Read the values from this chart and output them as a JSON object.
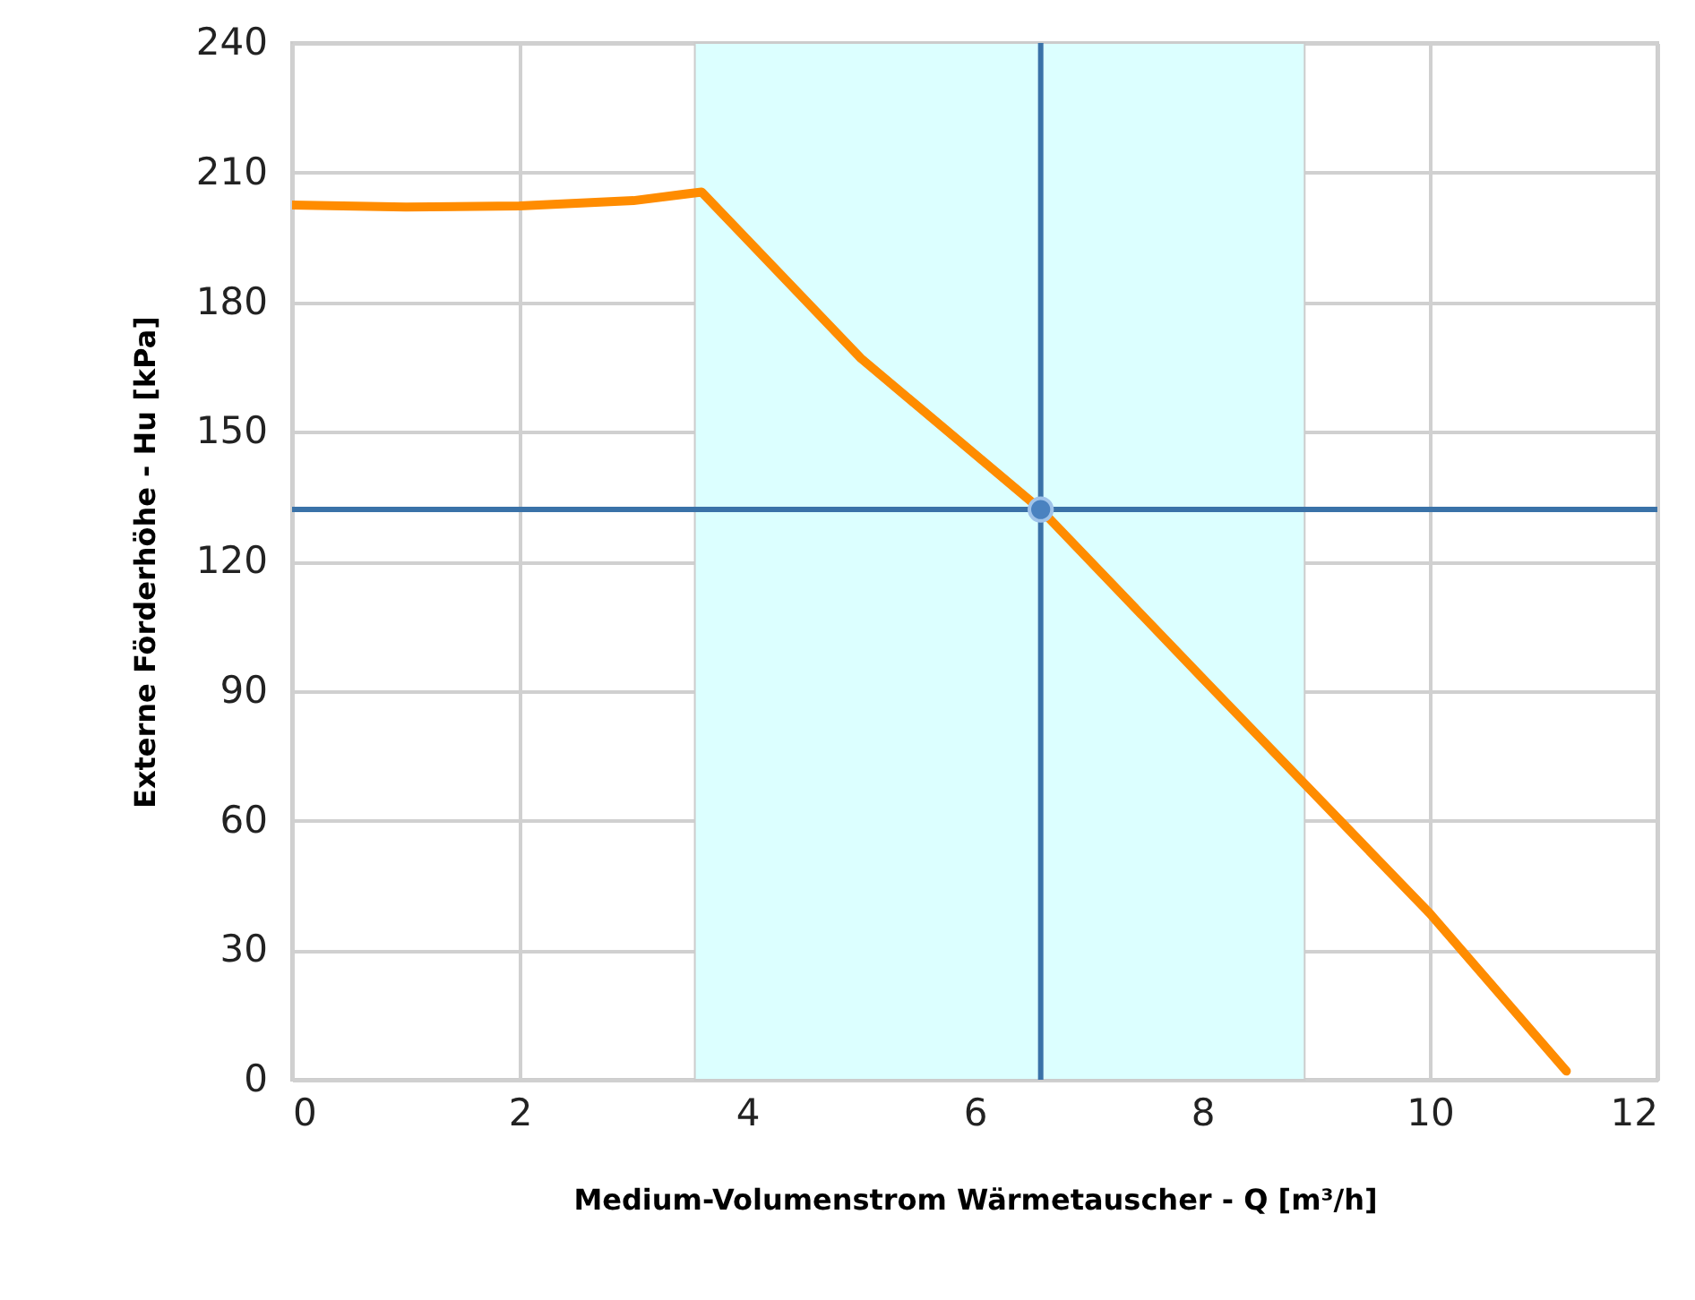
{
  "chart_data": {
    "type": "line",
    "xlabel": "Medium-Volumenstrom Wärmetauscher - Q [m³/h]",
    "ylabel": "Externe Förderhöhe - Hu [kPa]",
    "xlim": [
      0,
      12
    ],
    "xticks": [
      0,
      2,
      4,
      6,
      8,
      10,
      12
    ],
    "ylim": [
      0,
      240
    ],
    "yticks": [
      0,
      30,
      60,
      90,
      120,
      150,
      180,
      210,
      240
    ],
    "grid": true,
    "series": [
      {
        "type": "line",
        "color": "#ff8c00",
        "x": [
          0,
          1,
          2,
          3,
          3.6,
          5,
          6.58,
          8,
          10,
          11.2
        ],
        "values": [
          202.5,
          202,
          202.3,
          203.5,
          205.5,
          167,
          132,
          93,
          38.5,
          2
        ]
      },
      {
        "type": "scatter",
        "color": "#4a82c0",
        "marker": "circle",
        "x": [
          6.58
        ],
        "values": [
          132
        ]
      }
    ],
    "ref_lines": [
      {
        "axis": "x",
        "value": 6.58,
        "color": "#3a72a8"
      },
      {
        "axis": "y",
        "value": 132,
        "color": "#3a72a8"
      }
    ],
    "bands": [
      {
        "axis": "x",
        "from": 3.54,
        "to": 8.9,
        "color": "#dcffff"
      }
    ]
  }
}
